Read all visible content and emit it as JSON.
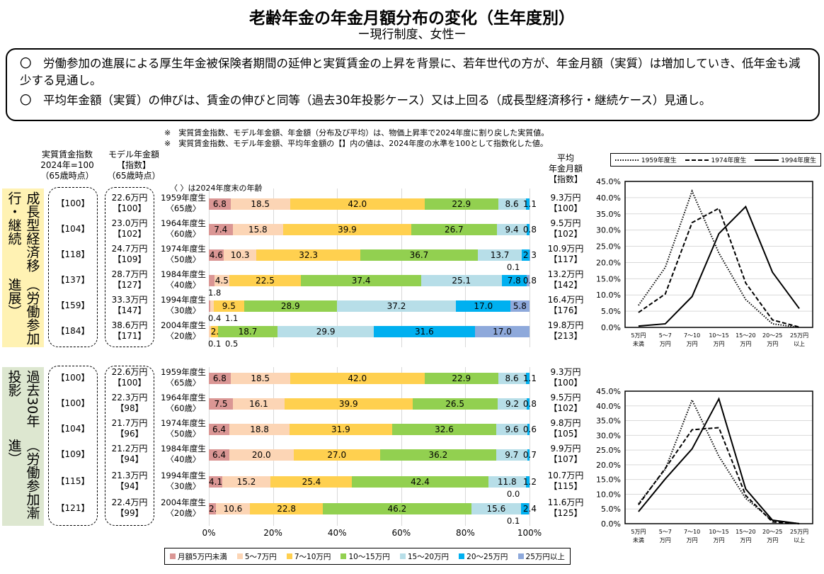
{
  "header": {
    "title": "老齢年金の年金月額分布の変化（生年度別）",
    "subtitle": "ー現行制度、女性ー"
  },
  "summary": [
    "〇　労働参加の進展による厚生年金被保険者期間の延伸と実質賃金の上昇を背景に、若年世代の方が、年金月額（実質）は増加していき、低年金も減少する見通し。",
    "〇　平均年金額（実質）の伸びは、賃金の伸びと同等（過去30年投影ケース）又は上回る（成長型経済移行・継続ケース）見通し。"
  ],
  "notes": [
    "※　実質賃金指数、モデル年金額、年金額（分布及び平均）は、物価上昇率で2024年度に割り戻した実質値。",
    "※　実質賃金指数、モデル年金額、平均年金額の【】内の値は、2024年度の水準を100として指数化した値。"
  ],
  "column_headers": {
    "wage": [
      "実質賃金指数",
      "2024年=100",
      "（65歳時点）"
    ],
    "model": [
      "モデル年金額",
      "【指数】",
      "（65歳時点）"
    ],
    "avg": [
      "平均",
      "年金月額",
      "【指数】"
    ],
    "age_note": "〈 〉は2024年度末の年齢"
  },
  "sections": [
    {
      "label": "成長型経済移行・継続",
      "sub": "（労働参加進展）",
      "color": "#FFF2B3",
      "wage": [
        "【100】",
        "【104】",
        "【118】",
        "【137】",
        "【159】",
        "【184】"
      ],
      "model": [
        [
          "22.6万円",
          "【100】"
        ],
        [
          "23.0万円",
          "【102】"
        ],
        [
          "24.7万円",
          "【109】"
        ],
        [
          "28.7万円",
          "【127】"
        ],
        [
          "33.3万円",
          "【147】"
        ],
        [
          "38.6万円",
          "【171】"
        ]
      ],
      "avg": [
        [
          "9.3万円",
          "【100】"
        ],
        [
          "9.5万円",
          "【102】"
        ],
        [
          "10.9万円",
          "【117】"
        ],
        [
          "13.2万円",
          "【142】"
        ],
        [
          "16.4万円",
          "【176】"
        ],
        [
          "19.8万円",
          "【213】"
        ]
      ]
    },
    {
      "label": "過去30年投影",
      "sub": "（労働参加漸進）",
      "color": "#DDE7D0",
      "wage": [
        "【100】",
        "【100】",
        "【104】",
        "【109】",
        "【115】",
        "【121】"
      ],
      "model": [
        [
          "22.6万円",
          "【100】"
        ],
        [
          "22.3万円",
          "【98】"
        ],
        [
          "21.7万円",
          "【96】"
        ],
        [
          "21.2万円",
          "【94】"
        ],
        [
          "21.3万円",
          "【94】"
        ],
        [
          "22.4万円",
          "【99】"
        ]
      ],
      "avg": [
        [
          "9.3万円",
          "【100】"
        ],
        [
          "9.5万円",
          "【102】"
        ],
        [
          "9.8万円",
          "【105】"
        ],
        [
          "9.9万円",
          "【107】"
        ],
        [
          "10.7万円",
          "【115】"
        ],
        [
          "11.6万円",
          "【125】"
        ]
      ]
    }
  ],
  "cohorts": [
    [
      "1959年度生",
      "〈65歳〉"
    ],
    [
      "1964年度生",
      "〈60歳〉"
    ],
    [
      "1974年度生",
      "〈50歳〉"
    ],
    [
      "1984年度生",
      "〈40歳〉"
    ],
    [
      "1994年度生",
      "〈30歳〉"
    ],
    [
      "2004年度生",
      "〈20歳〉"
    ]
  ],
  "chart_data": [
    {
      "type": "bar",
      "stacked": "100%",
      "orientation": "horizontal",
      "xlim": [
        0,
        100
      ],
      "xticks": [
        "0%",
        "20%",
        "40%",
        "60%",
        "80%",
        "100%"
      ],
      "grid": true,
      "categories": [
        "1959年度生",
        "1964年度生",
        "1974年度生",
        "1984年度生",
        "1994年度生",
        "2004年度生"
      ],
      "legend": [
        "月額5万円未満",
        "5～7万円",
        "7～10万円",
        "10～15万円",
        "15～20万円",
        "20～25万円",
        "25万円以上"
      ],
      "colors": [
        "#DA9694",
        "#FCD5B5",
        "#FFD04F",
        "#92D050",
        "#B7DEE8",
        "#00B0F0",
        "#8EA9DB"
      ],
      "legend_placement": "bottom",
      "rows": [
        [
          "6.8",
          "18.5",
          "42.0",
          "22.9",
          "8.6",
          "1.1",
          null
        ],
        [
          "7.4",
          "15.8",
          "39.9",
          "26.7",
          "9.4",
          "0.8",
          null
        ],
        [
          "4.6",
          "10.3",
          "32.3",
          "36.7",
          "13.7",
          "2.3",
          "0.1"
        ],
        [
          "1.8",
          "4.5",
          "22.5",
          "37.4",
          "25.1",
          "7.8",
          "0.8"
        ],
        [
          "0.4",
          "1.1",
          "9.5",
          "28.9",
          "37.2",
          "17.0",
          "5.8"
        ],
        [
          "0.1",
          "0.5",
          "2.2",
          "18.7",
          "29.9",
          "31.6",
          "17.0"
        ]
      ]
    },
    {
      "type": "bar",
      "stacked": "100%",
      "orientation": "horizontal",
      "xlim": [
        0,
        100
      ],
      "xticks": [
        "0%",
        "20%",
        "40%",
        "60%",
        "80%",
        "100%"
      ],
      "grid": true,
      "categories": [
        "1959年度生",
        "1964年度生",
        "1974年度生",
        "1984年度生",
        "1994年度生",
        "2004年度生"
      ],
      "rows": [
        [
          "6.8",
          "18.5",
          "42.0",
          "22.9",
          "8.6",
          "1.1",
          null
        ],
        [
          "7.5",
          "16.1",
          "39.9",
          "26.5",
          "9.2",
          "0.8",
          null
        ],
        [
          "6.4",
          "18.8",
          "31.9",
          "32.6",
          "9.6",
          "0.6",
          null
        ],
        [
          "6.4",
          "20.0",
          "27.0",
          "36.2",
          "9.7",
          "0.7",
          null
        ],
        [
          "4.1",
          "15.2",
          "25.4",
          "42.4",
          "11.8",
          "1.2",
          "0.0"
        ],
        [
          "2.2",
          "10.6",
          "22.8",
          "46.2",
          "15.6",
          "2.4",
          "0.1"
        ]
      ]
    },
    {
      "type": "line",
      "categories": [
        [
          "5万円",
          "未満"
        ],
        [
          "5～7",
          "万円"
        ],
        [
          "7～10",
          "万円"
        ],
        [
          "10～15",
          "万円"
        ],
        [
          "15～20",
          "万円"
        ],
        [
          "20～25",
          "万円"
        ],
        [
          "25万円",
          "以上"
        ]
      ],
      "ylim": [
        0,
        45
      ],
      "yticks": [
        "0.0%",
        "5.0%",
        "10.0%",
        "15.0%",
        "20.0%",
        "25.0%",
        "30.0%",
        "35.0%",
        "40.0%",
        "45.0%"
      ],
      "grid": true,
      "legend_placement": "top",
      "series": [
        {
          "name": "1959年度生",
          "style": "dotted",
          "values": [
            6.8,
            18.5,
            42.0,
            22.9,
            8.6,
            1.1,
            0.0
          ]
        },
        {
          "name": "1974年度生",
          "style": "dashed",
          "values": [
            4.6,
            10.3,
            32.3,
            36.7,
            13.7,
            2.3,
            0.1
          ]
        },
        {
          "name": "1994年度生",
          "style": "solid",
          "values": [
            0.4,
            1.1,
            9.5,
            28.9,
            37.2,
            17.0,
            5.8
          ]
        }
      ]
    },
    {
      "type": "line",
      "categories": [
        [
          "5万円",
          "未満"
        ],
        [
          "5～7",
          "万円"
        ],
        [
          "7～10",
          "万円"
        ],
        [
          "10～15",
          "万円"
        ],
        [
          "15～20",
          "万円"
        ],
        [
          "20～25",
          "万円"
        ],
        [
          "25万円",
          "以上"
        ]
      ],
      "ylim": [
        0,
        45
      ],
      "yticks": [
        "0.0%",
        "5.0%",
        "10.0%",
        "15.0%",
        "20.0%",
        "25.0%",
        "30.0%",
        "35.0%",
        "40.0%",
        "45.0%"
      ],
      "grid": true,
      "series": [
        {
          "name": "1959年度生",
          "style": "dotted",
          "values": [
            6.8,
            18.5,
            42.0,
            22.9,
            8.6,
            1.1,
            0.0
          ]
        },
        {
          "name": "1974年度生",
          "style": "dashed",
          "values": [
            6.4,
            18.8,
            31.9,
            32.6,
            9.6,
            0.6,
            0.0
          ]
        },
        {
          "name": "1994年度生",
          "style": "solid",
          "values": [
            4.1,
            15.2,
            25.4,
            42.4,
            11.8,
            1.2,
            0.0
          ]
        }
      ]
    }
  ]
}
